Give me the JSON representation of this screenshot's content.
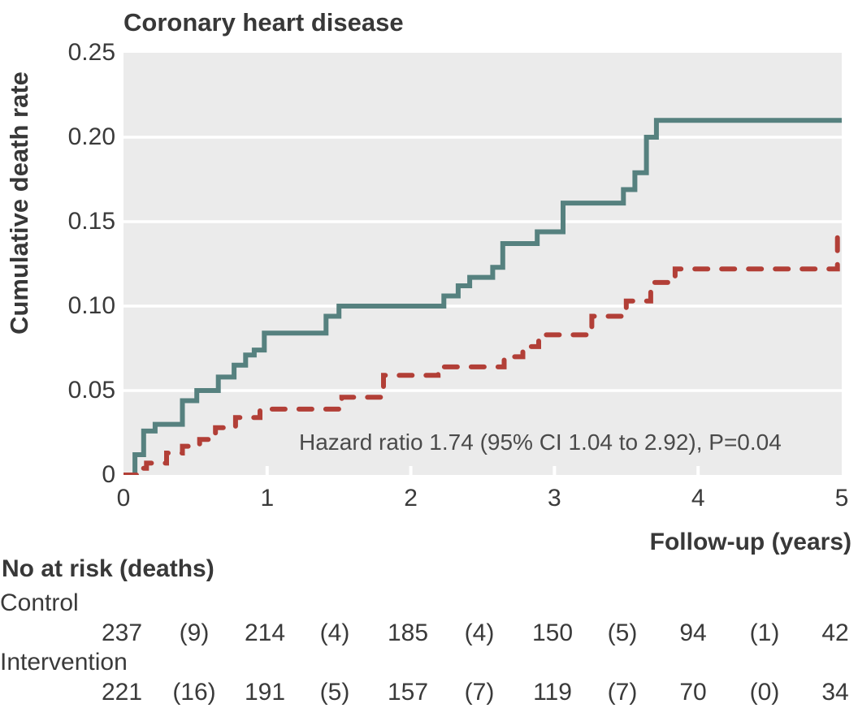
{
  "figure": {
    "title": "Coronary heart disease",
    "y_axis_label": "Cumulative death rate",
    "x_axis_label": "Follow-up (years)",
    "annotation": "Hazard ratio 1.74 (95% CI 1.04 to 2.92), P=0.04",
    "y_tick_labels": [
      "0.25",
      "0.20",
      "0.15",
      "0.10",
      "0.05",
      "0"
    ],
    "x_tick_labels": [
      "0",
      "1",
      "2",
      "3",
      "4",
      "5"
    ]
  },
  "risk_table": {
    "header": "No at risk (deaths)",
    "rows": [
      {
        "label": "Control",
        "at_risk": [
          "237",
          "214",
          "185",
          "150",
          "94",
          "42"
        ],
        "deaths": [
          "(9)",
          "(4)",
          "(4)",
          "(5)",
          "(1)"
        ]
      },
      {
        "label": "Intervention",
        "at_risk": [
          "221",
          "191",
          "157",
          "119",
          "70",
          "34"
        ],
        "deaths": [
          "(16)",
          "(5)",
          "(7)",
          "(7)",
          "(0)"
        ]
      }
    ]
  },
  "chart_data": {
    "type": "line",
    "subtype": "kaplan-meier cumulative incidence step curves",
    "title": "Coronary heart disease",
    "xlabel": "Follow-up (years)",
    "ylabel": "Cumulative death rate",
    "xlim": [
      0,
      5
    ],
    "ylim": [
      0,
      0.25
    ],
    "x_ticks": [
      0,
      1,
      2,
      3,
      4,
      5
    ],
    "y_ticks": [
      0,
      0.05,
      0.1,
      0.15,
      0.2,
      0.25
    ],
    "grid": "horizontal white gridlines on light gray panel",
    "legend_position": "none",
    "annotation": "Hazard ratio 1.74 (95% CI 1.04 to 2.92), P=0.04",
    "series": [
      {
        "name": "Intervention",
        "line_style": "solid",
        "color": "#56817f",
        "start": [
          0,
          0
        ],
        "steps": [
          [
            0.08,
            0.012
          ],
          [
            0.14,
            0.026
          ],
          [
            0.22,
            0.03
          ],
          [
            0.41,
            0.044
          ],
          [
            0.51,
            0.05
          ],
          [
            0.66,
            0.058
          ],
          [
            0.77,
            0.065
          ],
          [
            0.85,
            0.071
          ],
          [
            0.91,
            0.074
          ],
          [
            0.98,
            0.084
          ],
          [
            1.41,
            0.094
          ],
          [
            1.5,
            0.1
          ],
          [
            2.23,
            0.106
          ],
          [
            2.33,
            0.112
          ],
          [
            2.41,
            0.117
          ],
          [
            2.57,
            0.123
          ],
          [
            2.64,
            0.137
          ],
          [
            2.88,
            0.144
          ],
          [
            3.06,
            0.161
          ],
          [
            3.48,
            0.169
          ],
          [
            3.56,
            0.179
          ],
          [
            3.64,
            0.2
          ],
          [
            3.71,
            0.21
          ]
        ],
        "end_x": 5,
        "final_value": 0.21
      },
      {
        "name": "Control",
        "line_style": "dashed",
        "color": "#b23f37",
        "start": [
          0,
          0
        ],
        "steps": [
          [
            0.1,
            0.004
          ],
          [
            0.16,
            0.007
          ],
          [
            0.3,
            0.013
          ],
          [
            0.41,
            0.017
          ],
          [
            0.53,
            0.021
          ],
          [
            0.64,
            0.028
          ],
          [
            0.78,
            0.034
          ],
          [
            0.95,
            0.039
          ],
          [
            1.52,
            0.046
          ],
          [
            1.81,
            0.059
          ],
          [
            2.19,
            0.064
          ],
          [
            2.65,
            0.07
          ],
          [
            2.78,
            0.076
          ],
          [
            2.89,
            0.083
          ],
          [
            3.26,
            0.094
          ],
          [
            3.5,
            0.103
          ],
          [
            3.67,
            0.114
          ],
          [
            3.84,
            0.122
          ],
          [
            4.97,
            0.141
          ]
        ],
        "end_x": 5,
        "final_value": 0.141
      }
    ]
  },
  "colors": {
    "panel_background": "#ebebeb",
    "gridline": "#ffffff",
    "intervention_line": "#56817f",
    "control_line": "#b23f37",
    "text": "#3a3a3a"
  }
}
